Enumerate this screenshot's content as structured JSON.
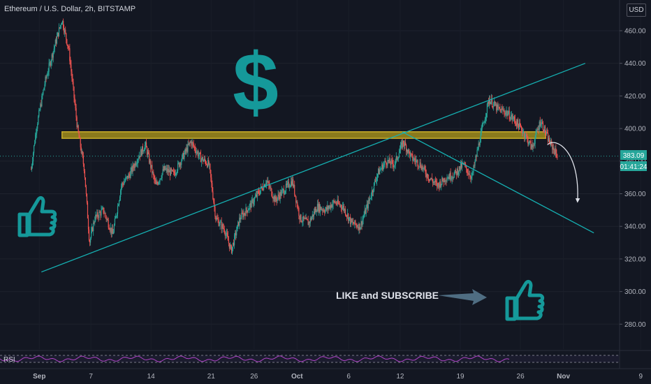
{
  "header": {
    "symbol_line": "Ethereum / U.S. Dollar, 2h, BITSTAMP",
    "currency_button": "USD"
  },
  "annotations": {
    "dollar_sign": "$",
    "like_text": "LIKE and SUBSCRIBE",
    "colors": {
      "teal": "#15999a",
      "resistance_fill": "#8a7a1c",
      "resistance_border": "#c7ad2a",
      "up": "#26a69a",
      "down": "#ef5350"
    }
  },
  "price_labels": {
    "last_price": "383.09",
    "countdown": "01:41:24"
  },
  "rsi": {
    "label": "RSI"
  },
  "chart_data": {
    "type": "candlestick",
    "title": "Ethereum / U.S. Dollar, 2h, BITSTAMP",
    "y_axis": {
      "range": [
        262,
        476
      ],
      "ticks": [
        "460.00",
        "440.00",
        "420.00",
        "400.00",
        "380.00",
        "360.00",
        "340.00",
        "320.00",
        "300.00",
        "280.00"
      ],
      "tick_values": [
        460,
        440,
        420,
        400,
        380,
        360,
        340,
        320,
        300,
        280
      ]
    },
    "x_axis": {
      "ticks": [
        "Sep",
        "7",
        "14",
        "21",
        "26",
        "Oct",
        "6",
        "12",
        "19",
        "26",
        "Nov",
        "9"
      ],
      "tick_days": [
        1,
        7,
        14,
        21,
        26,
        31,
        37,
        43,
        50,
        57,
        62,
        71
      ],
      "note": "days counted from Sep 1"
    },
    "series_close": [
      {
        "day": 0.0,
        "price": 375
      },
      {
        "day": 0.6,
        "price": 400
      },
      {
        "day": 1.6,
        "price": 428
      },
      {
        "day": 2.6,
        "price": 448
      },
      {
        "day": 3.6,
        "price": 467
      },
      {
        "day": 4.4,
        "price": 448
      },
      {
        "day": 5.4,
        "price": 400
      },
      {
        "day": 6.2,
        "price": 375
      },
      {
        "day": 6.8,
        "price": 330
      },
      {
        "day": 7.4,
        "price": 345
      },
      {
        "day": 8.4,
        "price": 350
      },
      {
        "day": 9.5,
        "price": 335
      },
      {
        "day": 10.5,
        "price": 365
      },
      {
        "day": 11.5,
        "price": 372
      },
      {
        "day": 12.5,
        "price": 383
      },
      {
        "day": 13.3,
        "price": 390
      },
      {
        "day": 14.5,
        "price": 365
      },
      {
        "day": 15.5,
        "price": 375
      },
      {
        "day": 16.6,
        "price": 372
      },
      {
        "day": 17.6,
        "price": 382
      },
      {
        "day": 18.6,
        "price": 392
      },
      {
        "day": 19.7,
        "price": 382
      },
      {
        "day": 20.7,
        "price": 378
      },
      {
        "day": 21.5,
        "price": 345
      },
      {
        "day": 22.5,
        "price": 338
      },
      {
        "day": 23.3,
        "price": 325
      },
      {
        "day": 24.3,
        "price": 345
      },
      {
        "day": 25.4,
        "price": 352
      },
      {
        "day": 26.4,
        "price": 360
      },
      {
        "day": 27.4,
        "price": 368
      },
      {
        "day": 28.4,
        "price": 356
      },
      {
        "day": 29.4,
        "price": 362
      },
      {
        "day": 30.4,
        "price": 368
      },
      {
        "day": 31.3,
        "price": 345
      },
      {
        "day": 32.3,
        "price": 342
      },
      {
        "day": 33.3,
        "price": 352
      },
      {
        "day": 34.3,
        "price": 350
      },
      {
        "day": 35.3,
        "price": 355
      },
      {
        "day": 36.3,
        "price": 352
      },
      {
        "day": 37.3,
        "price": 342
      },
      {
        "day": 38.3,
        "price": 340
      },
      {
        "day": 39.3,
        "price": 355
      },
      {
        "day": 40.3,
        "price": 372
      },
      {
        "day": 41.3,
        "price": 380
      },
      {
        "day": 42.3,
        "price": 378
      },
      {
        "day": 43.3,
        "price": 392
      },
      {
        "day": 44.3,
        "price": 382
      },
      {
        "day": 45.3,
        "price": 378
      },
      {
        "day": 46.3,
        "price": 370
      },
      {
        "day": 47.3,
        "price": 365
      },
      {
        "day": 48.3,
        "price": 370
      },
      {
        "day": 49.3,
        "price": 372
      },
      {
        "day": 50.3,
        "price": 378
      },
      {
        "day": 51.3,
        "price": 370
      },
      {
        "day": 52.3,
        "price": 395
      },
      {
        "day": 53.3,
        "price": 418
      },
      {
        "day": 54.3,
        "price": 412
      },
      {
        "day": 55.3,
        "price": 410
      },
      {
        "day": 56.3,
        "price": 405
      },
      {
        "day": 57.3,
        "price": 398
      },
      {
        "day": 58.3,
        "price": 388
      },
      {
        "day": 59.3,
        "price": 405
      },
      {
        "day": 60.3,
        "price": 392
      },
      {
        "day": 61.3,
        "price": 383
      }
    ],
    "drawings": {
      "resistance_zone": {
        "from_day": 3.6,
        "to_day": 59.9,
        "low": 394,
        "high": 398
      },
      "ascending_trendline": {
        "from": {
          "day": 1.2,
          "price": 312
        },
        "to": {
          "day": 64.5,
          "price": 440
        }
      },
      "descending_trendline": {
        "from": {
          "day": 43.2,
          "price": 398
        },
        "to": {
          "day": 65.5,
          "price": 336
        }
      },
      "projection_arrow": {
        "start": {
          "day": 60.1,
          "price": 390
        },
        "end": {
          "day": 63.6,
          "price": 355
        }
      }
    }
  }
}
